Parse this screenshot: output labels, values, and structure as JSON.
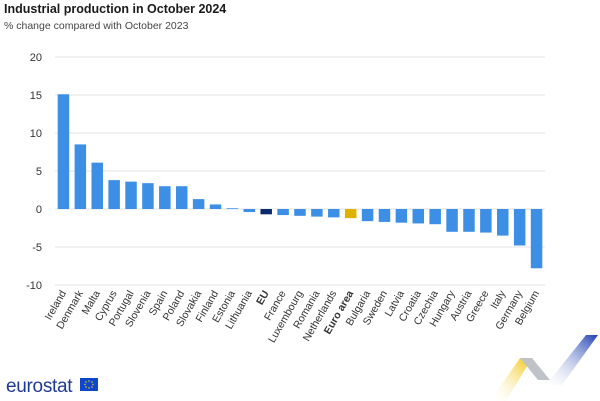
{
  "header": {
    "title": "Industrial production in October 2024",
    "subtitle": "% change compared with October 2023"
  },
  "brand": {
    "logo_text": "eurostat",
    "flag_icon": "eu-flag-icon",
    "decoration": "eurostat-ribbon-graphic"
  },
  "colors": {
    "default": "#3d8fe6",
    "eu": "#0a2a6b",
    "euro_area": "#e0b200",
    "grid": "#e3e3e3",
    "axis": "#cccccc"
  },
  "chart_data": {
    "type": "bar",
    "title": "Industrial production in October 2024",
    "subtitle": "% change compared with October 2023",
    "xlabel": "",
    "ylabel": "",
    "ylim": [
      -10,
      20
    ],
    "yticks": [
      -10,
      -5,
      0,
      5,
      10,
      15,
      20
    ],
    "grid": true,
    "legend": "none",
    "categories": [
      "Ireland",
      "Denmark",
      "Malta",
      "Cyprus",
      "Portugal",
      "Slovenia",
      "Spain",
      "Poland",
      "Slovakia",
      "Finland",
      "Estonia",
      "Lithuania",
      "EU",
      "France",
      "Luxembourg",
      "Romania",
      "Netherlands",
      "Euro area",
      "Bulgaria",
      "Sweden",
      "Latvia",
      "Croatia",
      "Czechia",
      "Hungary",
      "Austria",
      "Greece",
      "Italy",
      "Germany",
      "Belgium"
    ],
    "values": [
      15.1,
      8.5,
      6.1,
      3.8,
      3.6,
      3.4,
      3.0,
      3.0,
      1.3,
      0.6,
      0.1,
      -0.4,
      -0.7,
      -0.8,
      -0.9,
      -1.0,
      -1.1,
      -1.2,
      -1.6,
      -1.7,
      -1.8,
      -1.9,
      -2.0,
      -3.0,
      -3.0,
      -3.1,
      -3.5,
      -4.8,
      -7.8
    ],
    "highlight": {
      "EU": "eu",
      "Euro area": "euro_area"
    },
    "bold_categories": [
      "EU",
      "Euro area"
    ]
  }
}
